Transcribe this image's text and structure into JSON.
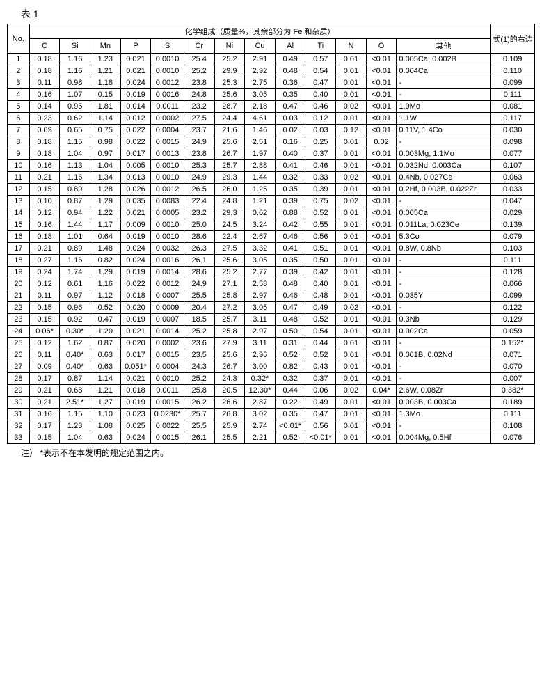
{
  "caption": "表 1",
  "header": {
    "group_label": "化学组成（质量%，其余部分为 Fe 和杂质）",
    "no_label": "No.",
    "rhs_label": "式(1)的右边",
    "cols": [
      "C",
      "Si",
      "Mn",
      "P",
      "S",
      "Cr",
      "Ni",
      "Cu",
      "Al",
      "Ti",
      "N",
      "O",
      "其他"
    ]
  },
  "rows": [
    {
      "no": "1",
      "c": "0.18",
      "si": "1.16",
      "mn": "1.23",
      "p": "0.021",
      "s": "0.0010",
      "cr": "25.4",
      "ni": "25.2",
      "cu": "2.91",
      "al": "0.49",
      "ti": "0.57",
      "n": "0.01",
      "o": "<0.01",
      "other": "0.005Ca, 0.002B",
      "rhs": "0.109"
    },
    {
      "no": "2",
      "c": "0.18",
      "si": "1.16",
      "mn": "1.21",
      "p": "0.021",
      "s": "0.0010",
      "cr": "25.2",
      "ni": "29.9",
      "cu": "2.92",
      "al": "0.48",
      "ti": "0.54",
      "n": "0.01",
      "o": "<0.01",
      "other": "0.004Ca",
      "rhs": "0.110"
    },
    {
      "no": "3",
      "c": "0.11",
      "si": "0.98",
      "mn": "1.18",
      "p": "0.024",
      "s": "0.0012",
      "cr": "23.8",
      "ni": "25.3",
      "cu": "2.75",
      "al": "0.36",
      "ti": "0.47",
      "n": "0.01",
      "o": "<0.01",
      "other": "-",
      "rhs": "0.099"
    },
    {
      "no": "4",
      "c": "0.16",
      "si": "1.07",
      "mn": "0.15",
      "p": "0.019",
      "s": "0.0016",
      "cr": "24.8",
      "ni": "25.6",
      "cu": "3.05",
      "al": "0.35",
      "ti": "0.40",
      "n": "0.01",
      "o": "<0.01",
      "other": "-",
      "rhs": "0.111"
    },
    {
      "no": "5",
      "c": "0.14",
      "si": "0.95",
      "mn": "1.81",
      "p": "0.014",
      "s": "0.0011",
      "cr": "23.2",
      "ni": "28.7",
      "cu": "2.18",
      "al": "0.47",
      "ti": "0.46",
      "n": "0.02",
      "o": "<0.01",
      "other": "1.9Mo",
      "rhs": "0.081"
    },
    {
      "no": "6",
      "c": "0.23",
      "si": "0.62",
      "mn": "1.14",
      "p": "0.012",
      "s": "0.0002",
      "cr": "27.5",
      "ni": "24.4",
      "cu": "4.61",
      "al": "0.03",
      "ti": "0.12",
      "n": "0.01",
      "o": "<0.01",
      "other": "1.1W",
      "rhs": "0.117"
    },
    {
      "no": "7",
      "c": "0.09",
      "si": "0.65",
      "mn": "0.75",
      "p": "0.022",
      "s": "0.0004",
      "cr": "23.7",
      "ni": "21.6",
      "cu": "1.46",
      "al": "0.02",
      "ti": "0.03",
      "n": "0.12",
      "o": "<0.01",
      "other": "0.11V, 1.4Co",
      "rhs": "0.030"
    },
    {
      "no": "8",
      "c": "0.18",
      "si": "1.15",
      "mn": "0.98",
      "p": "0.022",
      "s": "0.0015",
      "cr": "24.9",
      "ni": "25.6",
      "cu": "2.51",
      "al": "0.16",
      "ti": "0.25",
      "n": "0.01",
      "o": "0.02",
      "other": "-",
      "rhs": "0.098"
    },
    {
      "no": "9",
      "c": "0.18",
      "si": "1.04",
      "mn": "0.97",
      "p": "0.017",
      "s": "0.0013",
      "cr": "23.8",
      "ni": "26.7",
      "cu": "1.97",
      "al": "0.40",
      "ti": "0.37",
      "n": "0.01",
      "o": "<0.01",
      "other": "0.003Mg, 1.1Mo",
      "rhs": "0.077"
    },
    {
      "no": "10",
      "c": "0.16",
      "si": "1.13",
      "mn": "1.04",
      "p": "0.005",
      "s": "0.0010",
      "cr": "25.3",
      "ni": "25.7",
      "cu": "2.88",
      "al": "0.41",
      "ti": "0.46",
      "n": "0.01",
      "o": "<0.01",
      "other": "0.032Nd, 0.003Ca",
      "rhs": "0.107"
    },
    {
      "no": "11",
      "c": "0.21",
      "si": "1.16",
      "mn": "1.34",
      "p": "0.013",
      "s": "0.0010",
      "cr": "24.9",
      "ni": "29.3",
      "cu": "1.44",
      "al": "0.32",
      "ti": "0.33",
      "n": "0.02",
      "o": "<0.01",
      "other": "0.4Nb, 0.027Ce",
      "rhs": "0.063"
    },
    {
      "no": "12",
      "c": "0.15",
      "si": "0.89",
      "mn": "1.28",
      "p": "0.026",
      "s": "0.0012",
      "cr": "26.5",
      "ni": "26.0",
      "cu": "1.25",
      "al": "0.35",
      "ti": "0.39",
      "n": "0.01",
      "o": "<0.01",
      "other": "0.2Hf, 0.003B, 0.022Zr",
      "rhs": "0.033"
    },
    {
      "no": "13",
      "c": "0.10",
      "si": "0.87",
      "mn": "1.29",
      "p": "0.035",
      "s": "0.0083",
      "cr": "22.4",
      "ni": "24.8",
      "cu": "1.21",
      "al": "0.39",
      "ti": "0.75",
      "n": "0.02",
      "o": "<0.01",
      "other": "-",
      "rhs": "0.047"
    },
    {
      "no": "14",
      "c": "0.12",
      "si": "0.94",
      "mn": "1.22",
      "p": "0.021",
      "s": "0.0005",
      "cr": "23.2",
      "ni": "29.3",
      "cu": "0.62",
      "al": "0.88",
      "ti": "0.52",
      "n": "0.01",
      "o": "<0.01",
      "other": "0.005Ca",
      "rhs": "0.029"
    },
    {
      "no": "15",
      "c": "0.16",
      "si": "1.44",
      "mn": "1.17",
      "p": "0.009",
      "s": "0.0010",
      "cr": "25.0",
      "ni": "24.5",
      "cu": "3.24",
      "al": "0.42",
      "ti": "0.55",
      "n": "0.01",
      "o": "<0.01",
      "other": "0.011La, 0.023Ce",
      "rhs": "0.139"
    },
    {
      "no": "16",
      "c": "0.18",
      "si": "1.01",
      "mn": "0.64",
      "p": "0.019",
      "s": "0.0010",
      "cr": "28.6",
      "ni": "22.4",
      "cu": "2.67",
      "al": "0.46",
      "ti": "0.56",
      "n": "0.01",
      "o": "<0.01",
      "other": "5.3Co",
      "rhs": "0.079"
    },
    {
      "no": "17",
      "c": "0.21",
      "si": "0.89",
      "mn": "1.48",
      "p": "0.024",
      "s": "0.0032",
      "cr": "26.3",
      "ni": "27.5",
      "cu": "3.32",
      "al": "0.41",
      "ti": "0.51",
      "n": "0.01",
      "o": "<0.01",
      "other": "0.8W, 0.8Nb",
      "rhs": "0.103"
    },
    {
      "no": "18",
      "c": "0.27",
      "si": "1.16",
      "mn": "0.82",
      "p": "0.024",
      "s": "0.0016",
      "cr": "26.1",
      "ni": "25.6",
      "cu": "3.05",
      "al": "0.35",
      "ti": "0.50",
      "n": "0.01",
      "o": "<0.01",
      "other": "-",
      "rhs": "0.111"
    },
    {
      "no": "19",
      "c": "0.24",
      "si": "1.74",
      "mn": "1.29",
      "p": "0.019",
      "s": "0.0014",
      "cr": "28.6",
      "ni": "25.2",
      "cu": "2.77",
      "al": "0.39",
      "ti": "0.42",
      "n": "0.01",
      "o": "<0.01",
      "other": "-",
      "rhs": "0.128"
    },
    {
      "no": "20",
      "c": "0.12",
      "si": "0.61",
      "mn": "1.16",
      "p": "0.022",
      "s": "0.0012",
      "cr": "24.9",
      "ni": "27.1",
      "cu": "2.58",
      "al": "0.48",
      "ti": "0.40",
      "n": "0.01",
      "o": "<0.01",
      "other": "-",
      "rhs": "0.066"
    },
    {
      "no": "21",
      "c": "0.11",
      "si": "0.97",
      "mn": "1.12",
      "p": "0.018",
      "s": "0.0007",
      "cr": "25.5",
      "ni": "25.8",
      "cu": "2.97",
      "al": "0.46",
      "ti": "0.48",
      "n": "0.01",
      "o": "<0.01",
      "other": "0.035Y",
      "rhs": "0.099"
    },
    {
      "no": "22",
      "c": "0.15",
      "si": "0.96",
      "mn": "0.52",
      "p": "0.020",
      "s": "0.0009",
      "cr": "20.4",
      "ni": "27.2",
      "cu": "3.05",
      "al": "0.47",
      "ti": "0.49",
      "n": "0.02",
      "o": "<0.01",
      "other": "-",
      "rhs": "0.122"
    },
    {
      "no": "23",
      "c": "0.15",
      "si": "0.92",
      "mn": "0.47",
      "p": "0.019",
      "s": "0.0007",
      "cr": "18.5",
      "ni": "25.7",
      "cu": "3.11",
      "al": "0.48",
      "ti": "0.52",
      "n": "0.01",
      "o": "<0.01",
      "other": "0.3Nb",
      "rhs": "0.129"
    },
    {
      "no": "24",
      "c": "0.06*",
      "si": "0.30*",
      "mn": "1.20",
      "p": "0.021",
      "s": "0.0014",
      "cr": "25.2",
      "ni": "25.8",
      "cu": "2.97",
      "al": "0.50",
      "ti": "0.54",
      "n": "0.01",
      "o": "<0.01",
      "other": "0.002Ca",
      "rhs": "0.059"
    },
    {
      "no": "25",
      "c": "0.12",
      "si": "1.62",
      "mn": "0.87",
      "p": "0.020",
      "s": "0.0002",
      "cr": "23.6",
      "ni": "27.9",
      "cu": "3.11",
      "al": "0.31",
      "ti": "0.44",
      "n": "0.01",
      "o": "<0.01",
      "other": "-",
      "rhs": "0.152*"
    },
    {
      "no": "26",
      "c": "0.11",
      "si": "0.40*",
      "mn": "0.63",
      "p": "0.017",
      "s": "0.0015",
      "cr": "23.5",
      "ni": "25.6",
      "cu": "2.96",
      "al": "0.52",
      "ti": "0.52",
      "n": "0.01",
      "o": "<0.01",
      "other": "0.001B, 0.02Nd",
      "rhs": "0.071"
    },
    {
      "no": "27",
      "c": "0.09",
      "si": "0.40*",
      "mn": "0.63",
      "p": "0.051*",
      "s": "0.0004",
      "cr": "24.3",
      "ni": "26.7",
      "cu": "3.00",
      "al": "0.82",
      "ti": "0.43",
      "n": "0.01",
      "o": "<0.01",
      "other": "-",
      "rhs": "0.070"
    },
    {
      "no": "28",
      "c": "0.17",
      "si": "0.87",
      "mn": "1.14",
      "p": "0.021",
      "s": "0.0010",
      "cr": "25.2",
      "ni": "24.3",
      "cu": "0.32*",
      "al": "0.32",
      "ti": "0.37",
      "n": "0.01",
      "o": "<0.01",
      "other": "-",
      "rhs": "0.007"
    },
    {
      "no": "29",
      "c": "0.21",
      "si": "0.68",
      "mn": "1.21",
      "p": "0.018",
      "s": "0.0011",
      "cr": "25.8",
      "ni": "20.5",
      "cu": "12.30*",
      "al": "0.44",
      "ti": "0.06",
      "n": "0.02",
      "o": "0.04*",
      "other": "2.6W, 0.08Zr",
      "rhs": "0.382*"
    },
    {
      "no": "30",
      "c": "0.21",
      "si": "2.51*",
      "mn": "1.27",
      "p": "0.019",
      "s": "0.0015",
      "cr": "26.2",
      "ni": "26.6",
      "cu": "2.87",
      "al": "0.22",
      "ti": "0.49",
      "n": "0.01",
      "o": "<0.01",
      "other": "0.003B, 0.003Ca",
      "rhs": "0.189"
    },
    {
      "no": "31",
      "c": "0.16",
      "si": "1.15",
      "mn": "1.10",
      "p": "0.023",
      "s": "0.0230*",
      "cr": "25.7",
      "ni": "26.8",
      "cu": "3.02",
      "al": "0.35",
      "ti": "0.47",
      "n": "0.01",
      "o": "<0.01",
      "other": "1.3Mo",
      "rhs": "0.111"
    },
    {
      "no": "32",
      "c": "0.17",
      "si": "1.23",
      "mn": "1.08",
      "p": "0.025",
      "s": "0.0022",
      "cr": "25.5",
      "ni": "25.9",
      "cu": "2.74",
      "al": "<0.01*",
      "ti": "0.56",
      "n": "0.01",
      "o": "<0.01",
      "other": "-",
      "rhs": "0.108"
    },
    {
      "no": "33",
      "c": "0.15",
      "si": "1.04",
      "mn": "0.63",
      "p": "0.024",
      "s": "0.0015",
      "cr": "26.1",
      "ni": "25.5",
      "cu": "2.21",
      "al": "0.52",
      "ti": "<0.01*",
      "n": "0.01",
      "o": "<0.01",
      "other": "0.004Mg, 0.5Hf",
      "rhs": "0.076"
    }
  ],
  "footnote_label": "注）",
  "footnote_text": "*表示不在本发明的规定范围之内。"
}
